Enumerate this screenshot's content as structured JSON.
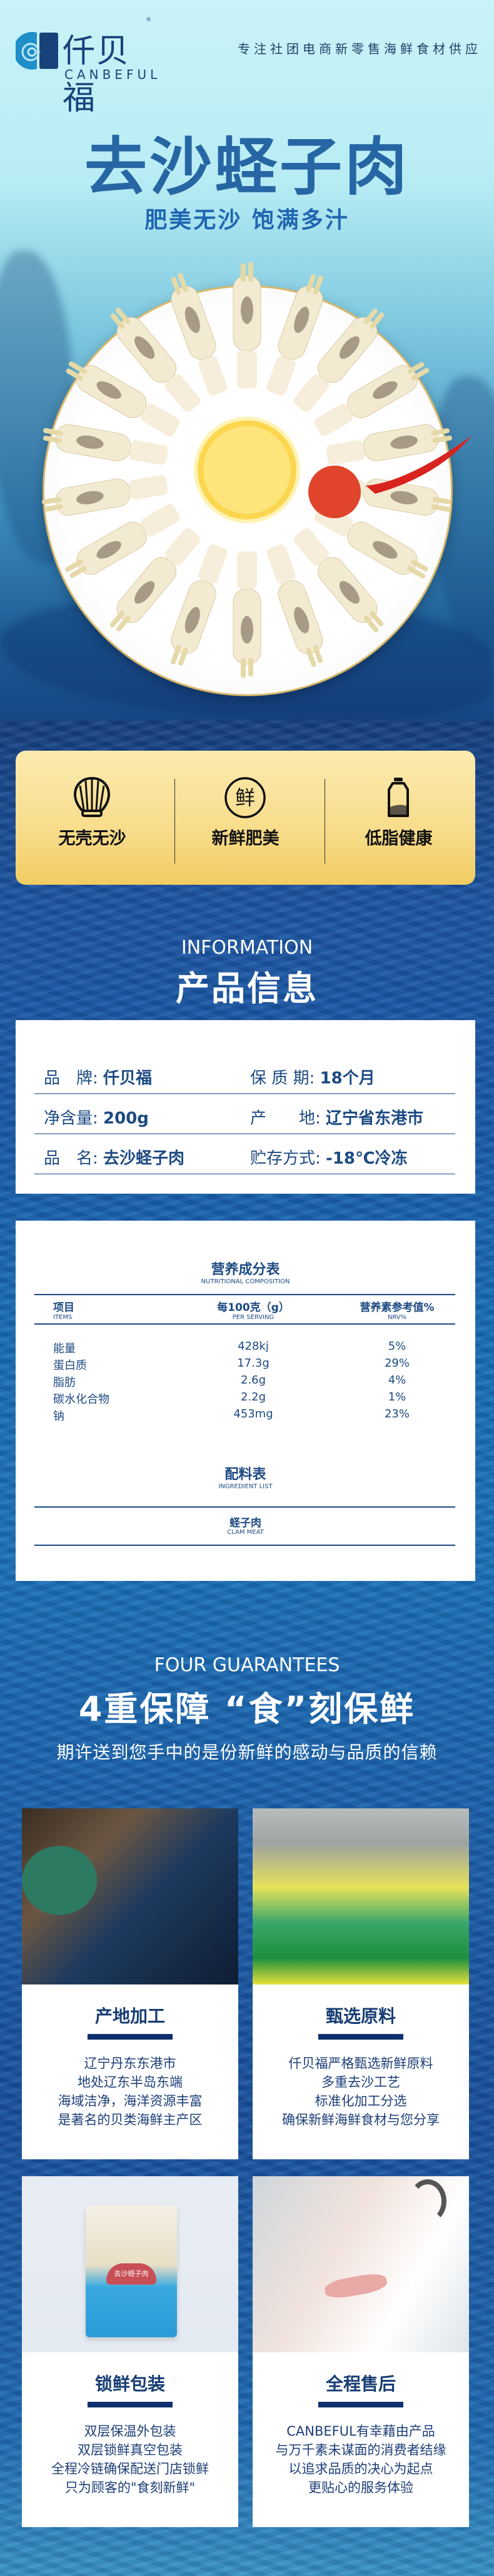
{
  "brand": {
    "name_cn": "仟贝福",
    "name_en": "CANBEFUL",
    "registered": "®"
  },
  "slogan": "专注社团电商新零售海鲜食材供应",
  "hero": {
    "title": "去沙蛏子肉",
    "subtitle": "肥美无沙 饱满多汁"
  },
  "benefits": [
    {
      "icon": "shell-icon",
      "label": "无壳无沙"
    },
    {
      "icon": "fresh-character-icon",
      "char": "鲜",
      "label": "新鲜肥美"
    },
    {
      "icon": "bottle-icon",
      "label": "低脂健康"
    }
  ],
  "information": {
    "heading_en": "INFORMATION",
    "heading_cn": "产品信息",
    "rows": [
      [
        {
          "label": "品　牌:",
          "value": "仟贝福"
        },
        {
          "label": "保 质 期:",
          "value": "18个月"
        }
      ],
      [
        {
          "label": "净含量:",
          "value": "200g"
        },
        {
          "label": "产　　地:",
          "value": "辽宁省东港市"
        }
      ],
      [
        {
          "label": "品　名:",
          "value": "去沙蛏子肉"
        },
        {
          "label": "贮存方式:",
          "value": "-18℃冷冻"
        }
      ]
    ]
  },
  "nutrition": {
    "title": "营养成分表",
    "subtitle": "NUTRITIONAL COMPOSITION",
    "headers": [
      {
        "cn": "项目",
        "en": "ITEMS"
      },
      {
        "cn": "每100克（g）",
        "en": "PER SERVING"
      },
      {
        "cn": "营养素参考值%",
        "en": "NRV%"
      }
    ],
    "rows": [
      [
        "能量",
        "428kj",
        "5%"
      ],
      [
        "蛋白质",
        "17.3g",
        "29%"
      ],
      [
        "脂肪",
        "2.6g",
        "4%"
      ],
      [
        "碳水化合物",
        "2.2g",
        "1%"
      ],
      [
        "钠",
        "453mg",
        "23%"
      ]
    ]
  },
  "ingredients": {
    "title": "配料表",
    "subtitle": "INGREDIENT LIST",
    "item_cn": "蛏子肉",
    "item_en": "CLAM MEAT"
  },
  "guarantees": {
    "heading_en": "FOUR GUARANTEES",
    "heading_cn": "4重保障 “食”刻保鲜",
    "tagline": "期许送到您手中的是份新鲜的感动与品质的信赖",
    "cards": [
      {
        "title": "产地加工",
        "lines": [
          "辽宁丹东东港市",
          "地处辽东半岛东端",
          "海域洁净，海洋资源丰富",
          "是著名的贝类海鲜主产区"
        ]
      },
      {
        "title": "甄选原料",
        "lines": [
          "仟贝福严格甄选新鲜原料",
          "多重去沙工艺",
          "标准化加工分选",
          "确保新鲜海鲜食材与您分享"
        ]
      },
      {
        "title": "锁鲜包装",
        "lines": [
          "双层保温外包装",
          "双层锁鲜真空包装",
          "全程冷链确保配送门店锁鲜",
          "只为顾客的\"食刻新鲜\""
        ]
      },
      {
        "title": "全程售后",
        "lines": [
          "CANBEFUL有幸藉由产品",
          "与万千素未谋面的消费者结缘",
          "以追求品质的决心为起点",
          "更贴心的服务体验"
        ]
      }
    ]
  },
  "package": {
    "label": "去沙蛏子肉"
  },
  "colors": {
    "title_blue": "#2766a4",
    "navy_text": "#1d4a82",
    "gold_card": "#f7dc8a",
    "bar_navy": "#0f2f6e"
  }
}
